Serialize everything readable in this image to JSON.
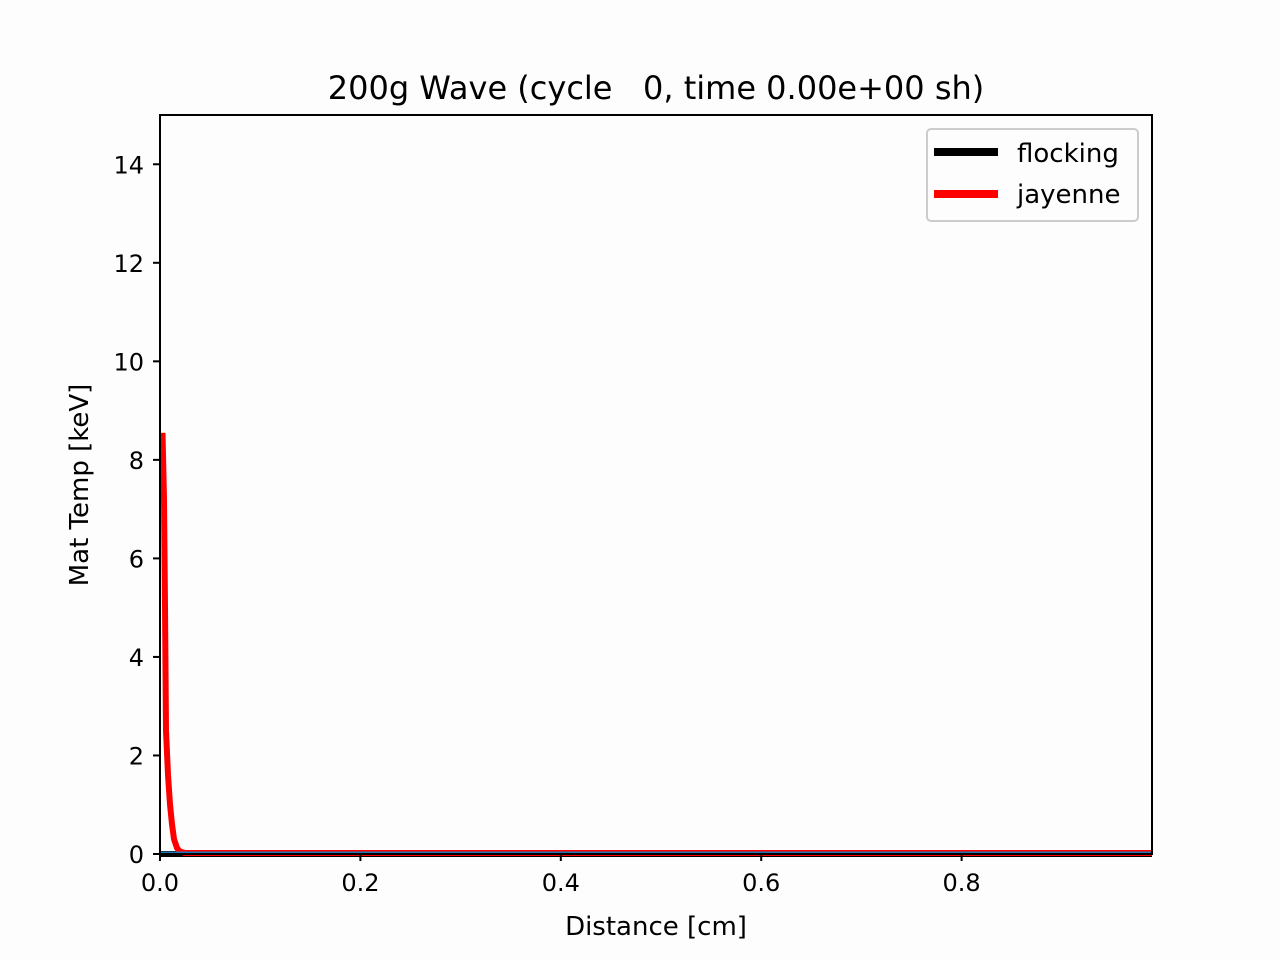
{
  "chart_data": {
    "type": "line",
    "title": "200g Wave (cycle   0, time 0.00e+00 sh)",
    "xlabel": "Distance [cm]",
    "ylabel": "Mat Temp [keV]",
    "xlim": [
      0,
      0.99
    ],
    "ylim": [
      0,
      15
    ],
    "xticks": [
      0.0,
      0.2,
      0.4,
      0.6,
      0.8
    ],
    "xtick_labels": [
      "0.0",
      "0.2",
      "0.4",
      "0.6",
      "0.8"
    ],
    "yticks": [
      0,
      2,
      4,
      6,
      8,
      10,
      12,
      14
    ],
    "ytick_labels": [
      "0",
      "2",
      "4",
      "6",
      "8",
      "10",
      "12",
      "14"
    ],
    "grid": false,
    "legend_position": "upper right",
    "series": [
      {
        "name": "flocking",
        "color": "#000000",
        "x": [
          0,
          0.99
        ],
        "y": [
          0,
          0
        ]
      },
      {
        "name": "jayenne",
        "color": "#ff0000",
        "x": [
          0.0025,
          0.004,
          0.005,
          0.006,
          0.008,
          0.01,
          0.012,
          0.014,
          0.017,
          0.02,
          0.025,
          0.99
        ],
        "y": [
          8.55,
          7.2,
          5.0,
          2.5,
          1.6,
          1.0,
          0.6,
          0.3,
          0.12,
          0.05,
          0.02,
          0.02
        ]
      },
      {
        "name": "",
        "color": "#1f77b4",
        "x": [
          0,
          0.99
        ],
        "y": [
          0.02,
          0.02
        ]
      }
    ]
  }
}
